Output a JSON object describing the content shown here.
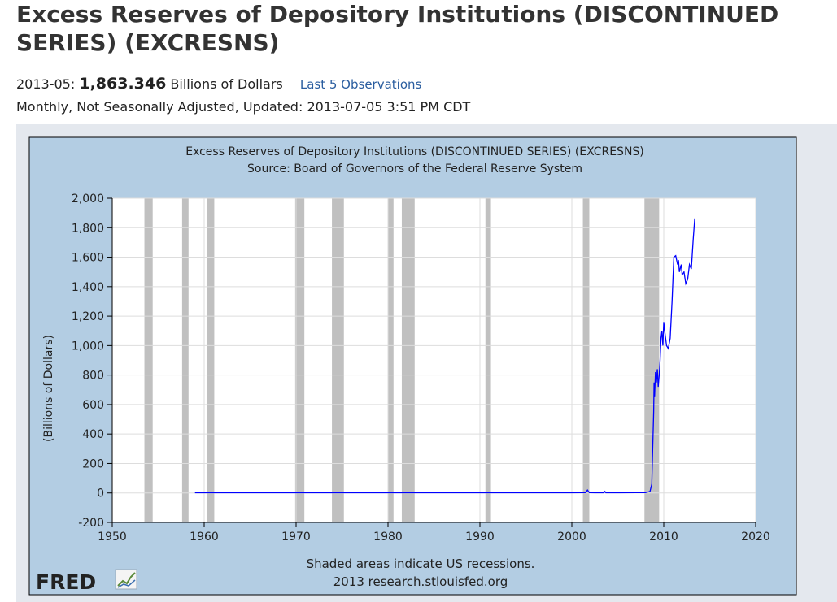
{
  "header": {
    "title": "Excess Reserves of Depository Institutions (DISCONTINUED SERIES) (EXCRESNS)",
    "obs_date": "2013-05:",
    "obs_value": "1,863.346",
    "obs_units": "Billions of Dollars",
    "obs_link": "Last 5 Observations",
    "meta": "Monthly, Not Seasonally Adjusted, Updated: 2013-07-05 3:51 PM CDT"
  },
  "colors": {
    "panel_bg": "#b3cde3",
    "plot_bg": "#ffffff",
    "line": "#0000ff",
    "recession": "#c0c0c0",
    "grid": "#dddddd"
  },
  "chart_data": {
    "type": "line",
    "title": "Excess Reserves of Depository Institutions (DISCONTINUED SERIES) (EXCRESNS)",
    "subtitle": "Source: Board of Governors of the Federal Reserve System",
    "xlabel": "",
    "ylabel": "(Billions of Dollars)",
    "xlim": [
      1950,
      2020
    ],
    "ylim": [
      -200,
      2000
    ],
    "x_ticks": [
      1950,
      1960,
      1970,
      1980,
      1990,
      2000,
      2010,
      2020
    ],
    "y_ticks": [
      -200,
      0,
      200,
      400,
      600,
      800,
      1000,
      1200,
      1400,
      1600,
      1800,
      2000
    ],
    "y_tick_labels": [
      "-200",
      "0",
      "200",
      "400",
      "600",
      "800",
      "1,000",
      "1,200",
      "1,400",
      "1,600",
      "1,800",
      "2,000"
    ],
    "grid": true,
    "recessions": [
      [
        1953.5,
        1954.4
      ],
      [
        1957.6,
        1958.3
      ],
      [
        1960.3,
        1961.1
      ],
      [
        1969.9,
        1970.9
      ],
      [
        1973.9,
        1975.2
      ],
      [
        1980.0,
        1980.6
      ],
      [
        1981.5,
        1982.9
      ],
      [
        1990.6,
        1991.2
      ],
      [
        2001.2,
        2001.9
      ],
      [
        2007.9,
        2009.5
      ]
    ],
    "series": [
      {
        "x": [
          1959.0,
          1965.0,
          1970.0,
          1975.0,
          1980.0,
          1985.0,
          1990.0,
          1995.0,
          2000.0,
          2001.5,
          2001.7,
          2001.9,
          2002.5,
          2003.5,
          2003.6,
          2003.7,
          2005.0,
          2007.0,
          2008.0,
          2008.5,
          2008.7,
          2008.8,
          2008.9,
          2008.95,
          2009.0,
          2009.1,
          2009.2,
          2009.3,
          2009.4,
          2009.5,
          2009.6,
          2009.7,
          2009.8,
          2009.9,
          2010.0,
          2010.1,
          2010.2,
          2010.3,
          2010.5,
          2010.7,
          2010.9,
          2011.0,
          2011.1,
          2011.3,
          2011.5,
          2011.6,
          2011.7,
          2011.9,
          2012.0,
          2012.2,
          2012.4,
          2012.6,
          2012.8,
          2013.0,
          2013.2,
          2013.37
        ],
        "y": [
          1,
          1,
          1,
          1,
          1,
          1,
          1,
          1,
          1,
          2,
          20,
          2,
          1,
          1,
          10,
          1,
          1,
          2,
          2,
          10,
          60,
          300,
          550,
          750,
          650,
          820,
          750,
          840,
          720,
          800,
          900,
          1050,
          1100,
          1000,
          1160,
          1100,
          1050,
          1000,
          980,
          1050,
          1300,
          1450,
          1600,
          1610,
          1550,
          1580,
          1500,
          1550,
          1480,
          1500,
          1420,
          1450,
          1550,
          1520,
          1720,
          1863
        ]
      }
    ],
    "note_lines": [
      "Shaded areas indicate US recessions.",
      "2013 research.stlouisfed.org"
    ],
    "logo_text": "FRED"
  }
}
